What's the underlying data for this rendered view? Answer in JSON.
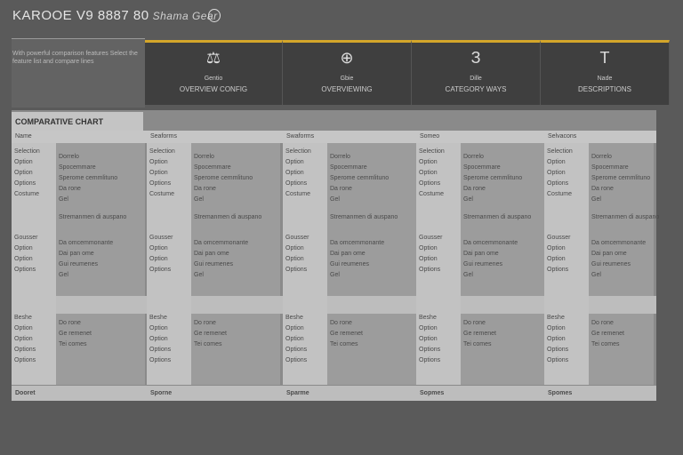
{
  "header": {
    "title": "KAROOE V9",
    "subtitle_num": "8887 80",
    "subtitle": "Shama Gear"
  },
  "intro": "With powerful comparison features Select the feature list and compare lines",
  "cards": [
    {
      "icon": "document-icon",
      "glyph": "⚖",
      "label": "Gentio",
      "caption": "OVERVIEW CONFIG"
    },
    {
      "icon": "globe-icon",
      "glyph": "⊕",
      "label": "Gbie",
      "caption": "OVERVIEWING"
    },
    {
      "icon": "leaf-icon",
      "glyph": "З",
      "label": "Dille",
      "caption": "CATEGORY WAYS"
    },
    {
      "icon": "tool-icon",
      "glyph": "T",
      "label": "Nade",
      "caption": "DESCRIPTIONS"
    }
  ],
  "table": {
    "section": "COMPARATIVE CHART",
    "columns": [
      "Name",
      "Seaforms",
      "Swaforms",
      "Someo",
      "Selvacons"
    ],
    "rows": [
      {
        "labels": [
          "Selection",
          "Option",
          "Option",
          "Options",
          "Costume"
        ],
        "text": [
          "Dorrelo",
          "Spocemmare",
          "Sperome cemmlituno",
          "Da rone",
          "Gel"
        ],
        "note": "Stremanmen di auspano"
      },
      {
        "labels": [
          "Gousser",
          "Option",
          "Option",
          "Options"
        ],
        "text": [
          "Da omcemmonante",
          "Dai pan ome",
          "Gui reumenes",
          "Gel"
        ],
        "note": ""
      },
      {
        "labels": [
          "Beshe",
          "Option",
          "Option",
          "Options",
          "Options"
        ],
        "text": [
          "Do rone",
          "Ge remenet",
          "Tei comes"
        ],
        "note": ""
      }
    ],
    "footer": [
      "Dooret",
      "Sporne",
      "Sparme",
      "Sopmes",
      "Spomes"
    ]
  }
}
